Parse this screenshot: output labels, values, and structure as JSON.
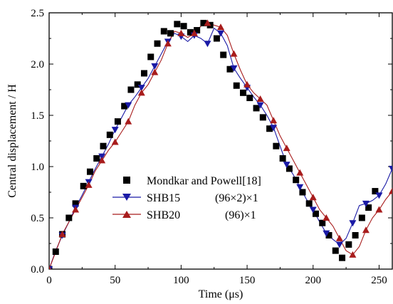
{
  "chart_data": {
    "type": "line",
    "xlabel": "Time (μs)",
    "ylabel": "Central displacement / H",
    "xlim": [
      0,
      260
    ],
    "ylim": [
      0,
      2.5
    ],
    "x_ticks": [
      "0",
      "50",
      "100",
      "150",
      "200",
      "250"
    ],
    "y_ticks": [
      "0.0",
      "0.5",
      "1.0",
      "1.5",
      "2.0",
      "2.5"
    ],
    "grid": false,
    "legend_position": "center-right",
    "series": [
      {
        "name": "Mondkar and Powell[18]",
        "style": "markers",
        "marker": "square",
        "color": "#000000",
        "x": [
          0,
          5,
          10,
          15,
          20,
          26,
          31,
          36,
          41,
          46,
          52,
          57,
          62,
          67,
          72,
          77,
          82,
          87,
          92,
          97,
          102,
          107,
          112,
          117,
          122,
          127,
          132,
          137,
          142,
          147,
          152,
          157,
          162,
          167,
          172,
          177,
          182,
          187,
          192,
          197,
          202,
          207,
          212,
          217,
          222,
          227,
          232,
          237,
          242,
          247
        ],
        "y": [
          0.0,
          0.17,
          0.34,
          0.5,
          0.64,
          0.81,
          0.95,
          1.08,
          1.2,
          1.31,
          1.44,
          1.59,
          1.75,
          1.8,
          1.91,
          2.07,
          2.2,
          2.32,
          2.3,
          2.39,
          2.37,
          2.31,
          2.33,
          2.4,
          2.38,
          2.25,
          2.09,
          1.95,
          1.79,
          1.72,
          1.67,
          1.57,
          1.48,
          1.37,
          1.2,
          1.08,
          0.98,
          0.87,
          0.75,
          0.64,
          0.54,
          0.45,
          0.33,
          0.18,
          0.11,
          0.24,
          0.33,
          0.5,
          0.6,
          0.76
        ]
      },
      {
        "name": "SHB15",
        "label_suffix": "(96×2)×1",
        "style": "line-markers",
        "marker": "triangle-down",
        "color": "#1a1aa6",
        "x": [
          0,
          5,
          10,
          15,
          20,
          25,
          30,
          35,
          40,
          45,
          50,
          55,
          60,
          65,
          70,
          75,
          80,
          85,
          90,
          95,
          100,
          105,
          110,
          115,
          120,
          125,
          130,
          135,
          140,
          145,
          150,
          155,
          160,
          165,
          170,
          175,
          180,
          185,
          190,
          195,
          200,
          205,
          210,
          215,
          220,
          225,
          230,
          235,
          240,
          245,
          250,
          255,
          260
        ],
        "y": [
          0.0,
          0.18,
          0.33,
          0.46,
          0.6,
          0.72,
          0.85,
          0.98,
          1.1,
          1.22,
          1.36,
          1.48,
          1.6,
          1.68,
          1.77,
          1.86,
          1.98,
          2.1,
          2.22,
          2.3,
          2.27,
          2.22,
          2.28,
          2.25,
          2.2,
          2.35,
          2.3,
          2.18,
          1.96,
          1.86,
          1.77,
          1.68,
          1.6,
          1.5,
          1.38,
          1.2,
          1.02,
          0.92,
          0.8,
          0.68,
          0.58,
          0.46,
          0.35,
          0.29,
          0.24,
          0.3,
          0.45,
          0.62,
          0.64,
          0.67,
          0.72,
          0.83,
          0.98
        ]
      },
      {
        "name": "SHB20",
        "label_suffix": "(96)×1",
        "style": "line-markers",
        "marker": "triangle-up",
        "color": "#a81c1c",
        "x": [
          0,
          5,
          10,
          15,
          20,
          25,
          30,
          35,
          40,
          45,
          50,
          55,
          60,
          65,
          70,
          75,
          80,
          85,
          90,
          95,
          100,
          105,
          110,
          115,
          120,
          125,
          130,
          135,
          140,
          145,
          150,
          155,
          160,
          165,
          170,
          175,
          180,
          185,
          190,
          195,
          200,
          205,
          210,
          215,
          220,
          225,
          230,
          235,
          240,
          245,
          250,
          255,
          260
        ],
        "y": [
          0.0,
          0.17,
          0.34,
          0.46,
          0.58,
          0.7,
          0.82,
          0.96,
          1.06,
          1.16,
          1.24,
          1.34,
          1.44,
          1.6,
          1.72,
          1.8,
          1.92,
          2.04,
          2.2,
          2.32,
          2.3,
          2.26,
          2.3,
          2.37,
          2.4,
          2.38,
          2.36,
          2.28,
          2.1,
          1.94,
          1.8,
          1.72,
          1.66,
          1.6,
          1.45,
          1.3,
          1.18,
          1.06,
          0.94,
          0.82,
          0.7,
          0.58,
          0.5,
          0.42,
          0.3,
          0.18,
          0.14,
          0.22,
          0.38,
          0.5,
          0.58,
          0.68,
          0.76
        ]
      }
    ]
  }
}
